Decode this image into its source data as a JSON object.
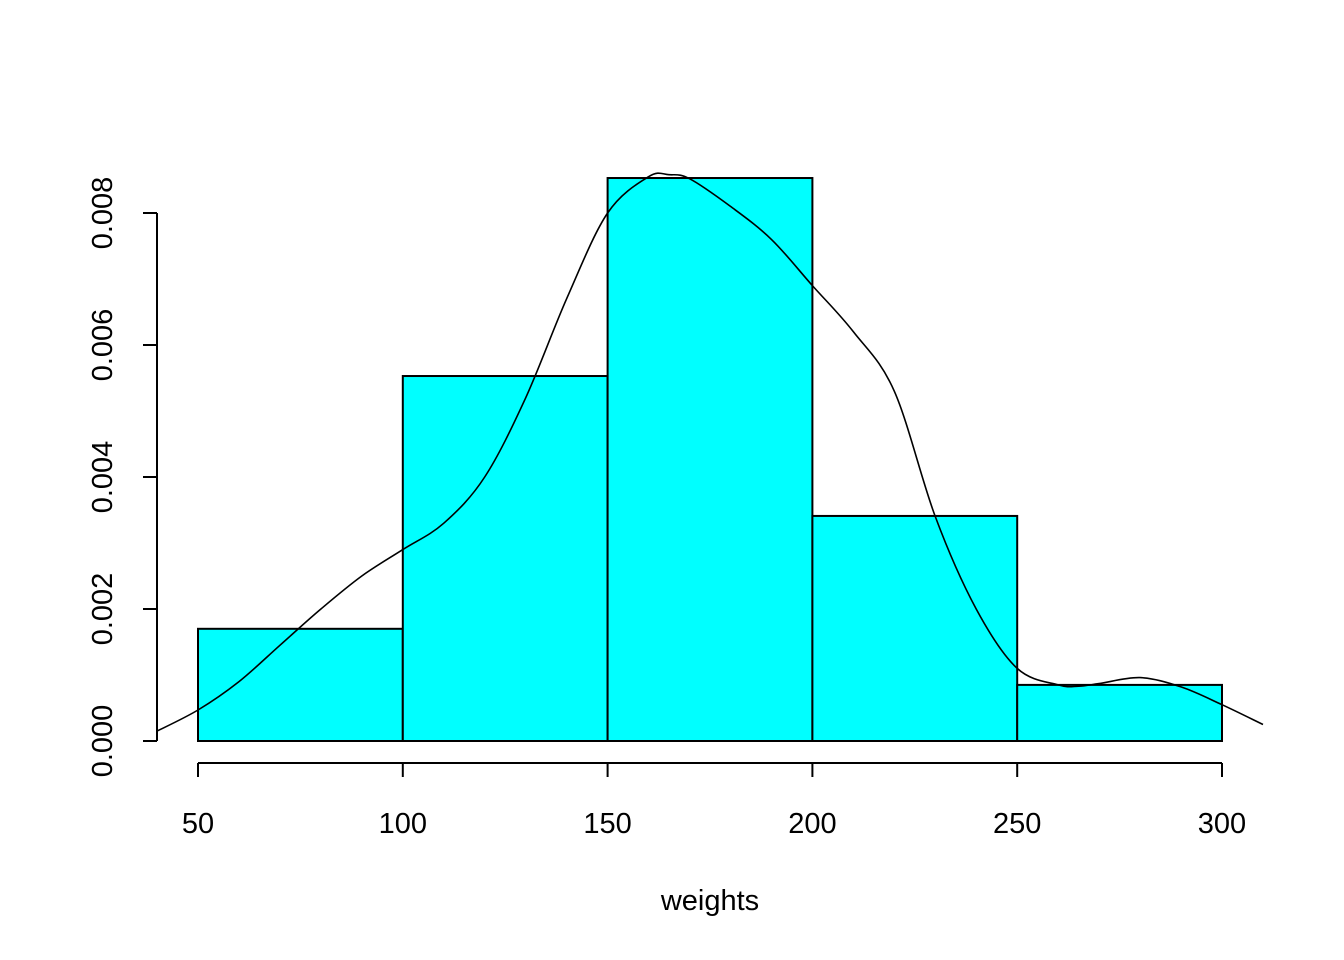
{
  "chart_data": {
    "type": "bar",
    "subtype": "histogram",
    "xlabel": "weights",
    "ylabel": "",
    "xlim": [
      40,
      310
    ],
    "ylim": [
      0,
      0.0086
    ],
    "bar_color": "#00FFFF",
    "grid": false,
    "bins": [
      {
        "from": 50,
        "to": 100,
        "density": 0.0017
      },
      {
        "from": 100,
        "to": 150,
        "density": 0.00553
      },
      {
        "from": 150,
        "to": 200,
        "density": 0.00853
      },
      {
        "from": 200,
        "to": 250,
        "density": 0.00341
      },
      {
        "from": 250,
        "to": 300,
        "density": 0.00085
      }
    ],
    "x_ticks": [
      {
        "value": 50,
        "label": "50"
      },
      {
        "value": 100,
        "label": "100"
      },
      {
        "value": 150,
        "label": "150"
      },
      {
        "value": 200,
        "label": "200"
      },
      {
        "value": 250,
        "label": "250"
      },
      {
        "value": 300,
        "label": "300"
      }
    ],
    "y_ticks": [
      {
        "value": 0,
        "label": "0.000"
      },
      {
        "value": 0.002,
        "label": "0.002"
      },
      {
        "value": 0.004,
        "label": "0.004"
      },
      {
        "value": 0.006,
        "label": "0.006"
      },
      {
        "value": 0.008,
        "label": "0.008"
      }
    ],
    "density_curve": {
      "x": [
        40,
        50,
        60,
        70,
        80,
        90,
        100,
        110,
        120,
        130,
        140,
        150,
        160,
        165,
        170,
        180,
        190,
        200,
        210,
        220,
        230,
        240,
        250,
        260,
        265,
        270,
        280,
        290,
        300,
        310
      ],
      "y": [
        0.00015,
        0.00047,
        0.0009,
        0.00145,
        0.002,
        0.0025,
        0.0029,
        0.0033,
        0.004,
        0.0052,
        0.0067,
        0.008,
        0.00855,
        0.00858,
        0.00852,
        0.0081,
        0.0076,
        0.0069,
        0.0062,
        0.0053,
        0.0034,
        0.002,
        0.0011,
        0.00085,
        0.00083,
        0.00087,
        0.00096,
        0.00082,
        0.00055,
        0.00025
      ]
    }
  }
}
